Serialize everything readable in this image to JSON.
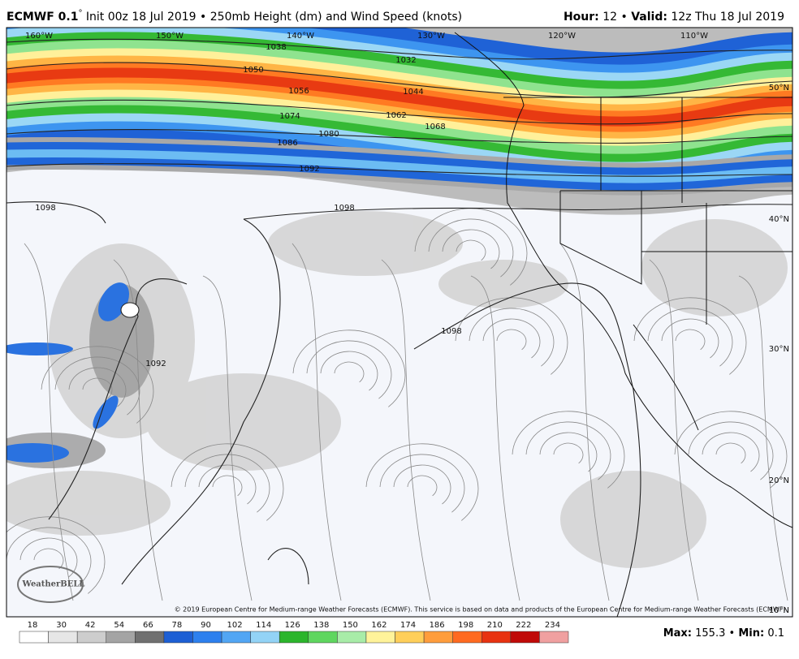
{
  "header": {
    "model": "ECMWF 0.1",
    "degree": "°",
    "init": "Init 00z 18 Jul 2019",
    "sep": "•",
    "product": "250mb Height (dm) and Wind Speed (knots)",
    "hour_label": "Hour:",
    "hour": "12",
    "valid_label": "Valid:",
    "valid": "12z Thu 18 Jul 2019"
  },
  "map": {
    "longitudes": [
      "160°W",
      "150°W",
      "140°W",
      "130°W",
      "120°W",
      "110°W"
    ],
    "latitudes": [
      "50°N",
      "40°N",
      "30°N",
      "20°N",
      "10°N"
    ],
    "contour_labels": [
      "1038",
      "1032",
      "1050",
      "1056",
      "1044",
      "1062",
      "1068",
      "1074",
      "1080",
      "1086",
      "1092",
      "1098",
      "1098",
      "1098",
      "1092"
    ],
    "logo": "WeatherBELL",
    "copyright": "© 2019 European Centre for Medium-range Weather Forecasts (ECMWF). This service is based on data and products of the European Centre for Medium-range Weather Forecasts (ECMWF)."
  },
  "colorbar": {
    "ticks": [
      "18",
      "30",
      "42",
      "54",
      "66",
      "78",
      "90",
      "102",
      "114",
      "126",
      "138",
      "150",
      "162",
      "174",
      "186",
      "198",
      "210",
      "222",
      "234"
    ],
    "colors": [
      "#ffffff",
      "#e6e6e6",
      "#cdcdcd",
      "#a4a4a4",
      "#707070",
      "#1d5fd4",
      "#2d80ee",
      "#52a6f4",
      "#93d3f6",
      "#2cb52c",
      "#5fd65f",
      "#a8eca8",
      "#fff39a",
      "#ffcf5a",
      "#ff9d3c",
      "#ff6a20",
      "#e83210",
      "#c00a08",
      "#f0a0a0"
    ]
  },
  "footer": {
    "max_label": "Max:",
    "max": "155.3",
    "sep": "•",
    "min_label": "Min:",
    "min": "0.1"
  }
}
